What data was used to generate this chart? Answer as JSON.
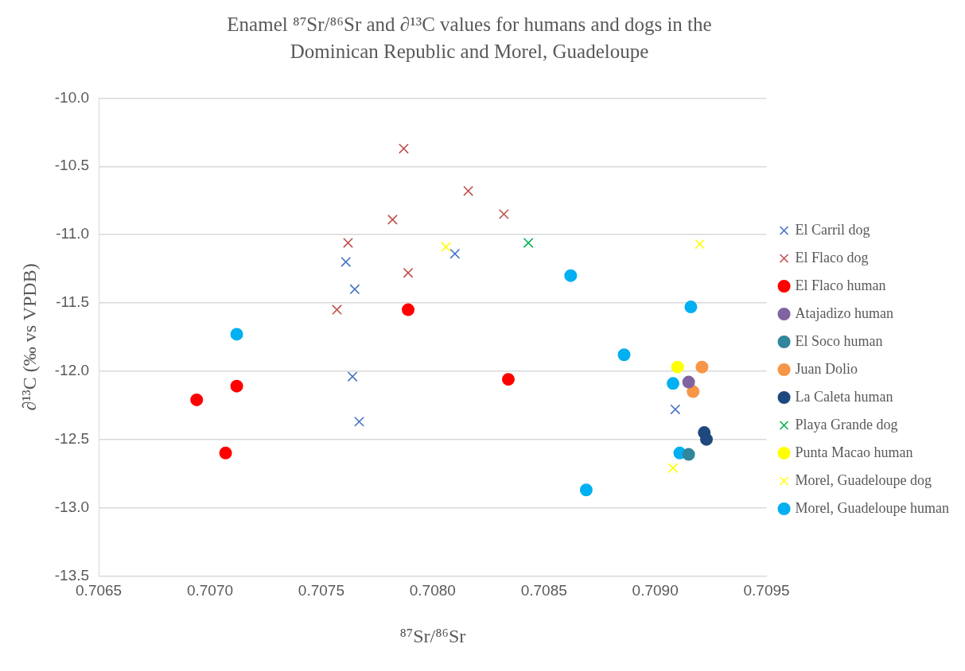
{
  "chart_data": {
    "type": "scatter",
    "title": "Enamel ⁸⁷Sr/⁸⁶Sr and ∂¹³C values for humans and dogs in the Dominican Republic and Morel, Guadeloupe",
    "xlabel": "⁸⁷Sr/⁸⁶Sr",
    "ylabel": "∂¹³C (‰ vs VPDB)",
    "xlim": [
      0.7065,
      0.7095
    ],
    "xticks": [
      0.7065,
      {
        "value": 0.707,
        "label": "0.7070"
      },
      0.7075,
      {
        "value": 0.708,
        "label": "0.7080"
      },
      0.7085,
      {
        "value": 0.709,
        "label": "0.7090"
      },
      0.7095
    ],
    "ylim": [
      -13.5,
      -10
    ],
    "yticks": [
      {
        "value": -13.5,
        "label": "-13.5"
      },
      {
        "value": -13,
        "label": "-13.0"
      },
      {
        "value": -12.5,
        "label": "-12.5"
      },
      {
        "value": -12,
        "label": "-12.0"
      },
      {
        "value": -11.5,
        "label": "-11.5"
      },
      {
        "value": -11,
        "label": "-11.0"
      },
      {
        "value": -10.5,
        "label": "-10.5"
      },
      {
        "value": -10,
        "label": "-10.0"
      }
    ],
    "grid": "y",
    "legend": "right",
    "series": [
      {
        "name": "El Carril dog",
        "color": "#4472c4",
        "marker": "cross",
        "x": [
          0.70761,
          0.7081,
          0.70765,
          0.70764,
          0.70767,
          0.70909
        ],
        "values": [
          -11.2,
          -11.14,
          -11.4,
          -12.04,
          -12.37,
          -12.28
        ]
      },
      {
        "name": "El Flaco dog",
        "color": "#c0504d",
        "marker": "cross",
        "x": [
          0.70787,
          0.70816,
          0.70832,
          0.70782,
          0.70762,
          0.70789,
          0.70757
        ],
        "values": [
          -10.37,
          -10.68,
          -10.85,
          -10.89,
          -11.06,
          -11.28,
          -11.55
        ]
      },
      {
        "name": "El Flaco human",
        "color": "#ff0000",
        "marker": "circle",
        "x": [
          0.70789,
          0.70834,
          0.70712,
          0.70694,
          0.70707
        ],
        "values": [
          -11.55,
          -12.06,
          -12.11,
          -12.21,
          -12.6
        ]
      },
      {
        "name": "Atajadizo human",
        "color": "#8064a2",
        "marker": "circle",
        "x": [
          0.70915
        ],
        "values": [
          -12.08
        ]
      },
      {
        "name": "El Soco human",
        "color": "#31859c",
        "marker": "circle",
        "x": [
          0.70915
        ],
        "values": [
          -12.61
        ]
      },
      {
        "name": "Juan Dolio",
        "color": "#f79646",
        "marker": "circle",
        "x": [
          0.70921,
          0.70917
        ],
        "values": [
          -11.97,
          -12.15
        ]
      },
      {
        "name": "La Caleta human",
        "color": "#1f497d",
        "marker": "circle",
        "x": [
          0.70922,
          0.70923
        ],
        "values": [
          -12.45,
          -12.5
        ]
      },
      {
        "name": "Playa Grande dog",
        "color": "#00b050",
        "marker": "cross",
        "x": [
          0.70843
        ],
        "values": [
          -11.06
        ]
      },
      {
        "name": "Punta Macao human",
        "color": "#ffff00",
        "marker": "circle",
        "x": [
          0.7091
        ],
        "values": [
          -11.97
        ]
      },
      {
        "name": "Morel, Guadeloupe dog",
        "color": "#ffff00",
        "marker": "cross",
        "x": [
          0.7092,
          0.70908,
          0.70806
        ],
        "values": [
          -11.07,
          -12.71,
          -11.09
        ]
      },
      {
        "name": "Morel, Guadeloupe human",
        "color": "#00b0f0",
        "marker": "circle",
        "x": [
          0.70712,
          0.70862,
          0.70886,
          0.70869,
          0.70916,
          0.70908,
          0.70911
        ],
        "values": [
          -11.73,
          -11.3,
          -11.88,
          -12.87,
          -11.53,
          -12.09,
          -12.6
        ]
      }
    ]
  }
}
